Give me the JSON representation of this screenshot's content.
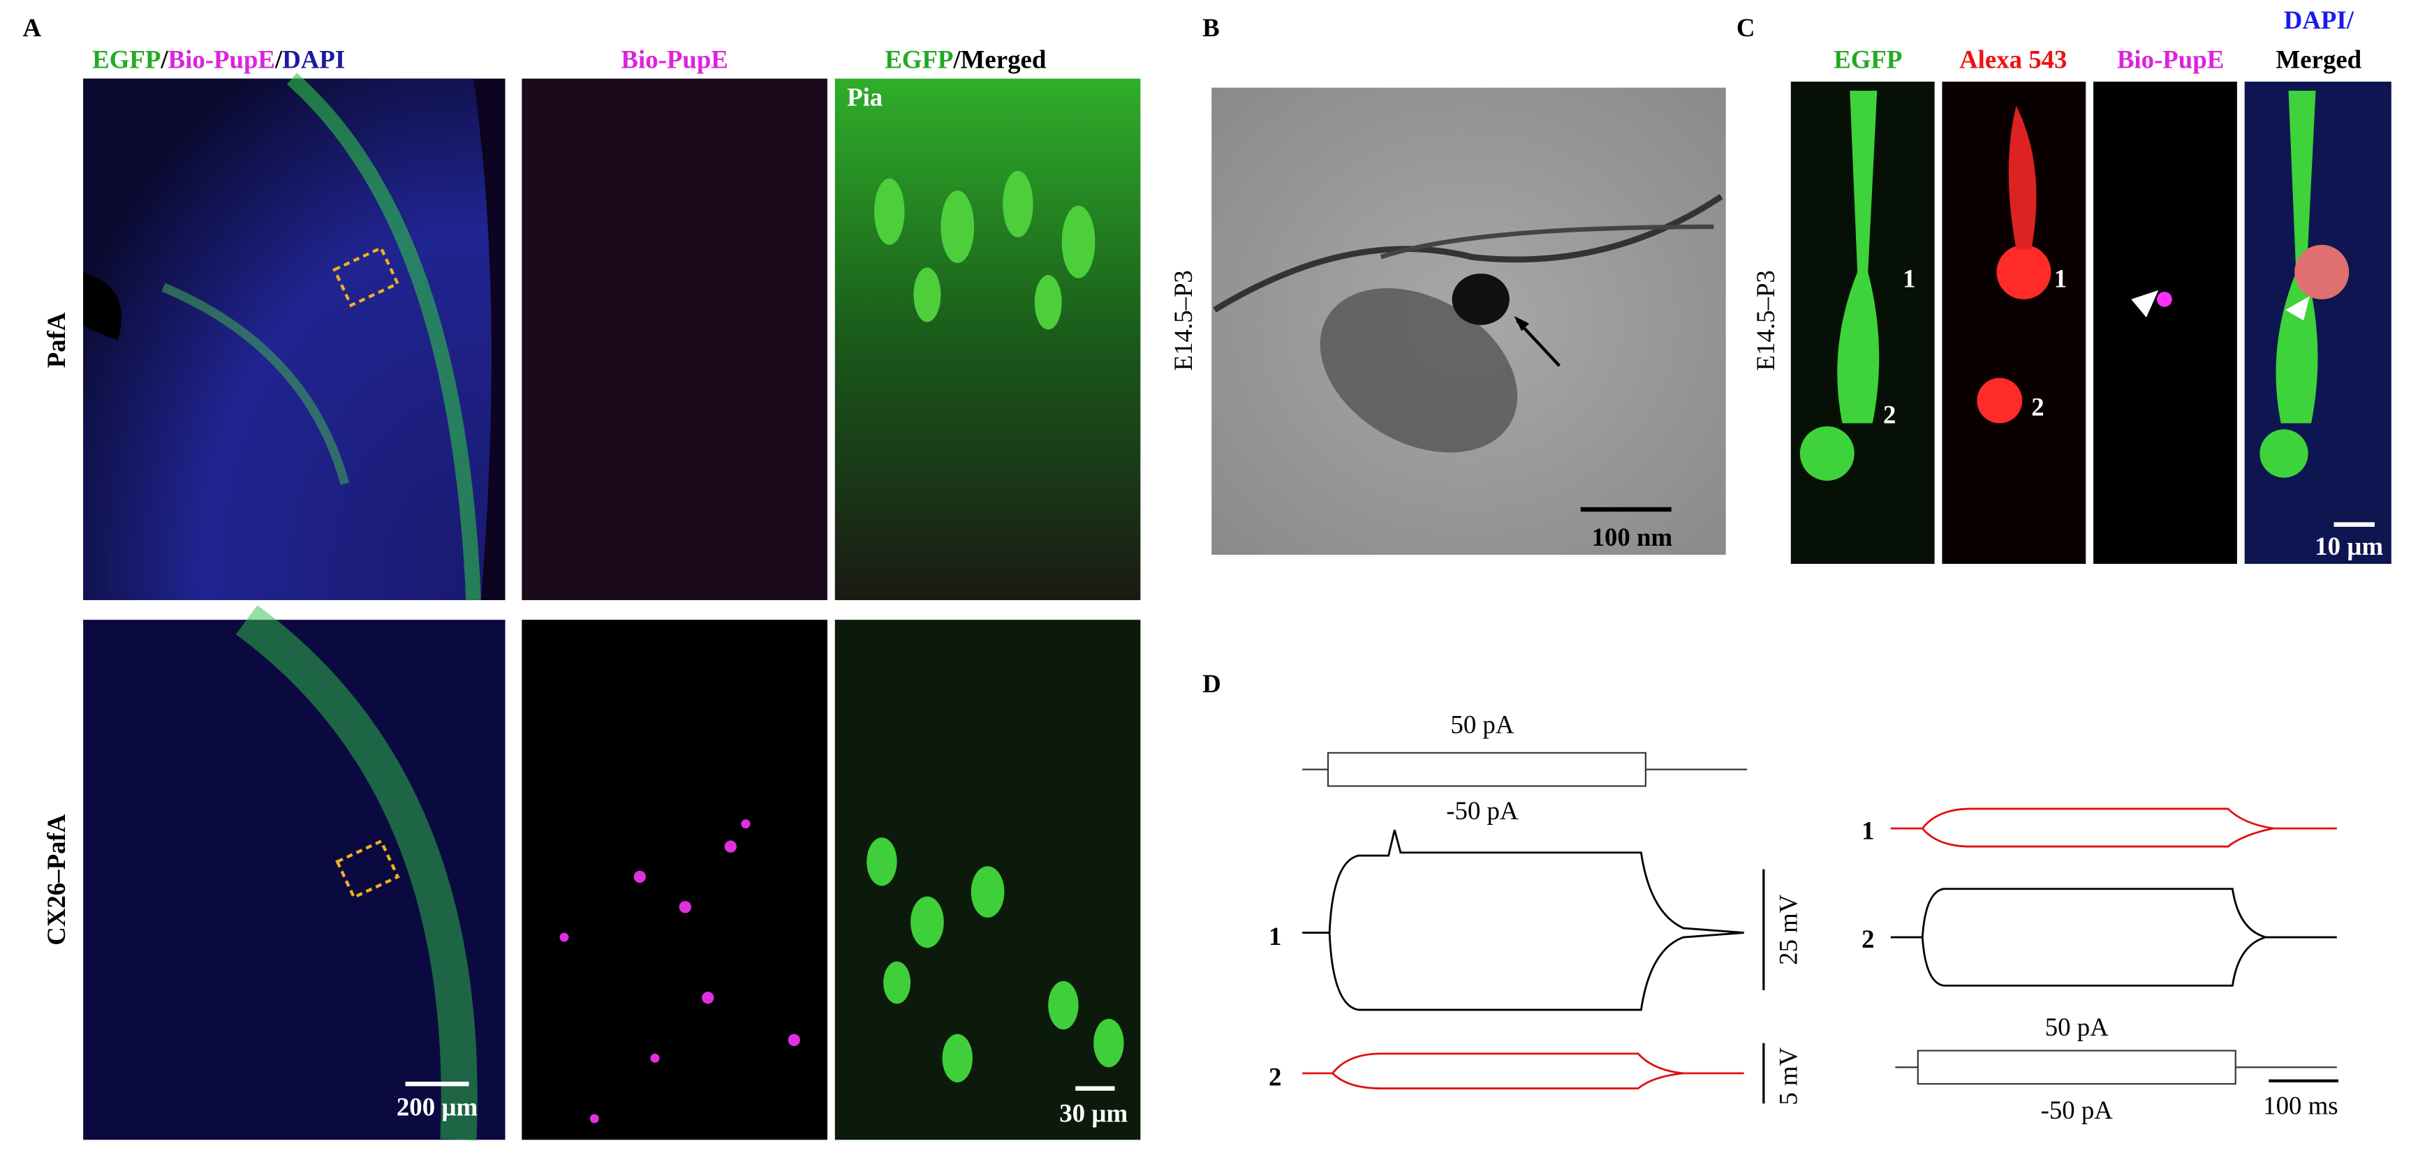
{
  "panel_a": {
    "label": "A",
    "header": {
      "egfp": "EGFP",
      "sep1": "/",
      "bio": "Bio-PupE",
      "sep2": "/",
      "dapi": "DAPI"
    },
    "col2": "Bio-PupE",
    "col3": {
      "egfp": "EGFP",
      "merged": "/Merged"
    },
    "pia": "Pia",
    "rows": [
      "PafA",
      "CX26–PafA"
    ],
    "scale_bars": [
      "200 µm",
      "30 µm"
    ]
  },
  "panel_b": {
    "label": "B",
    "row": "E14.5–P3",
    "scale_bar": "100 nm"
  },
  "panel_c": {
    "label": "C",
    "columns": [
      "EGFP",
      "Alexa 543",
      "Bio-PupE"
    ],
    "merged": {
      "dapi": "DAPI/",
      "merged": "Merged"
    },
    "row": "E14.5–P3",
    "cell_labels": [
      "1",
      "2"
    ],
    "scale_bar": "10 µm"
  },
  "panel_d": {
    "label": "D",
    "stimulus": [
      "50 pA",
      "-50 pA"
    ],
    "cells": [
      "1",
      "2"
    ],
    "scale": [
      "25 mV",
      "5 mV",
      "100 ms"
    ]
  }
}
